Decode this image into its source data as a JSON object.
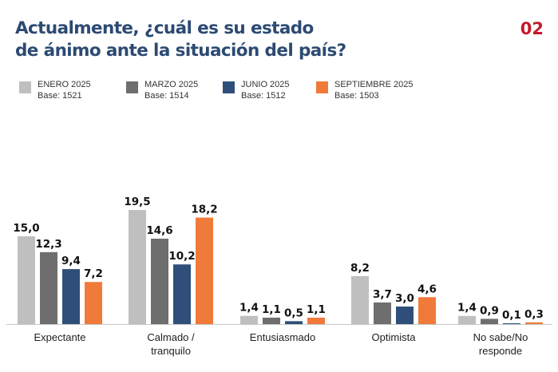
{
  "header": {
    "title_line1": "Actualmente, ¿cuál es su estado",
    "title_line2": "de ánimo ante la situación del país?",
    "page_number": "02"
  },
  "colors": {
    "title": "#2c4a72",
    "page_number": "#c21a2b",
    "axis": "#c8c8c8"
  },
  "chart_data": {
    "type": "bar",
    "title": "Actualmente, ¿cuál es su estado de ánimo ante la situación del país?",
    "xlabel": "",
    "ylabel": "",
    "ylim": [
      0,
      20
    ],
    "grid": false,
    "legend_position": "top-left",
    "value_format": "decimal-comma",
    "categories": [
      "Expectante",
      "Calmado / tranquilo",
      "Entusiasmado",
      "Optimista",
      "No sabe/No responde"
    ],
    "category_lines": [
      [
        "Expectante"
      ],
      [
        "Calmado /",
        "tranquilo"
      ],
      [
        "Entusiasmado"
      ],
      [
        "Optimista"
      ],
      [
        "No sabe/No",
        "responde"
      ]
    ],
    "series": [
      {
        "name": "ENERO 2025",
        "base": "Base: 1521",
        "color": "#bfbfbf",
        "values": [
          15.0,
          19.5,
          1.4,
          8.2,
          1.4
        ],
        "labels": [
          "15,0",
          "19,5",
          "1,4",
          "8,2",
          "1,4"
        ]
      },
      {
        "name": "MARZO 2025",
        "base": "Base: 1514",
        "color": "#6e6e6e",
        "values": [
          12.3,
          14.6,
          1.1,
          3.7,
          0.9
        ],
        "labels": [
          "12,3",
          "14,6",
          "1,1",
          "3,7",
          "0,9"
        ]
      },
      {
        "name": "JUNIO 2025",
        "base": "Base: 1512",
        "color": "#2f4f7a",
        "values": [
          9.4,
          10.2,
          0.5,
          3.0,
          0.1
        ],
        "labels": [
          "9,4",
          "10,2",
          "0,5",
          "3,0",
          "0,1"
        ]
      },
      {
        "name": "SEPTIEMBRE 2025",
        "base": "Base: 1503",
        "color": "#f07a3a",
        "values": [
          7.2,
          18.2,
          1.1,
          4.6,
          0.3
        ],
        "labels": [
          "7,2",
          "18,2",
          "1,1",
          "4,6",
          "0,3"
        ]
      }
    ]
  }
}
